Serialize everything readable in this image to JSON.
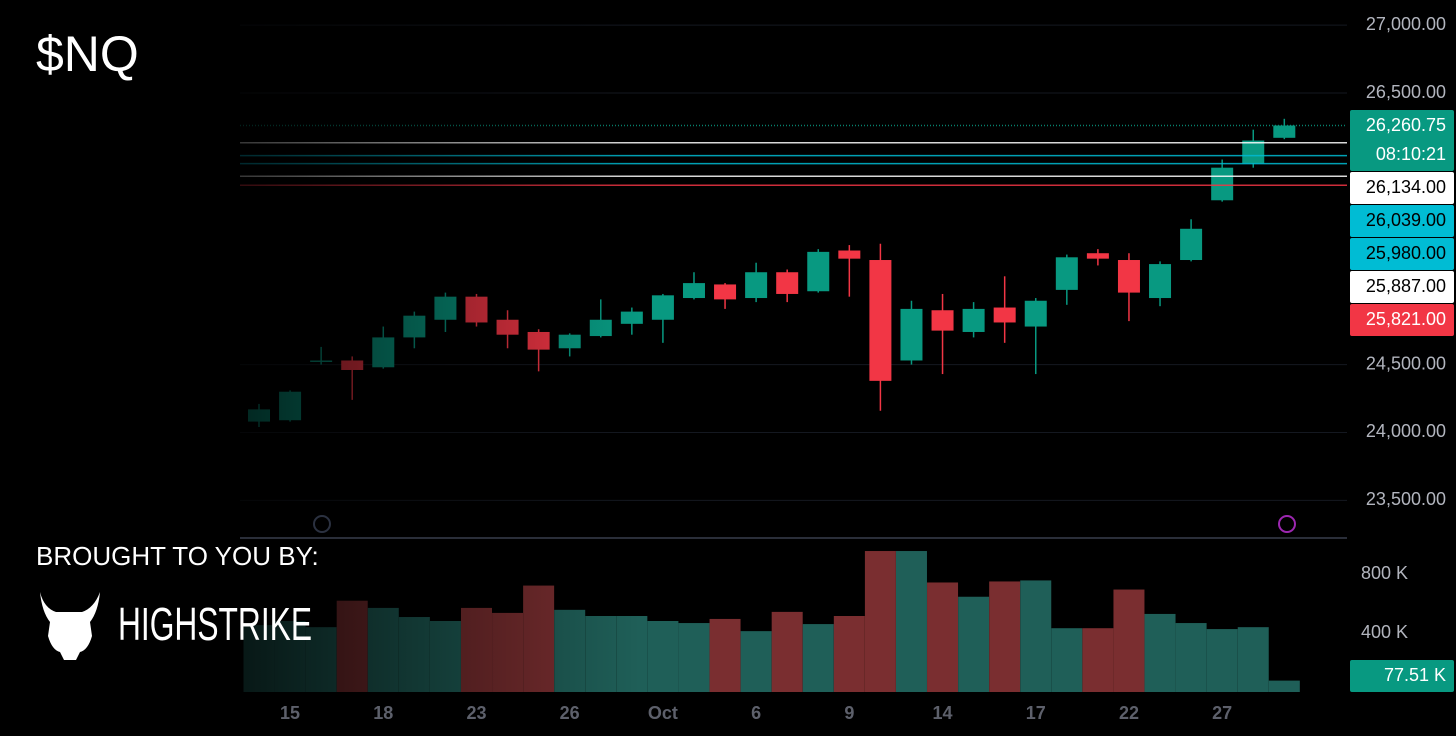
{
  "chart_data": {
    "type": "candlestick",
    "title": "$NQ",
    "categories": [
      null,
      "15",
      null,
      null,
      "18",
      null,
      null,
      "23",
      null,
      null,
      "26",
      null,
      null,
      "Oct",
      null,
      null,
      "6",
      null,
      null,
      "9",
      null,
      null,
      "14",
      null,
      null,
      "17",
      null,
      null,
      "22",
      null,
      null,
      "27",
      null,
      null
    ],
    "open": [
      24080,
      24090,
      24520,
      24530,
      24480,
      24700,
      24830,
      25000,
      24830,
      24740,
      24620,
      24710,
      24800,
      24830,
      24990,
      25090,
      24990,
      25180,
      25040,
      25340,
      25270,
      24530,
      24900,
      24740,
      24920,
      24780,
      25050,
      25320,
      25270,
      24990,
      25270,
      25710,
      25980,
      26170
    ],
    "high": [
      24210,
      24310,
      24630,
      24560,
      24780,
      24890,
      25030,
      25020,
      24900,
      24760,
      24730,
      24980,
      24920,
      25020,
      25180,
      25100,
      25250,
      25200,
      25350,
      25380,
      25390,
      24970,
      25020,
      24960,
      25150,
      24990,
      25310,
      25350,
      25320,
      25260,
      25570,
      26010,
      26230,
      26310
    ],
    "low": [
      24040,
      24080,
      24500,
      24240,
      24470,
      24620,
      24740,
      24780,
      24620,
      24450,
      24560,
      24700,
      24720,
      24660,
      24980,
      24910,
      24960,
      24960,
      25030,
      25000,
      24160,
      24500,
      24430,
      24700,
      24660,
      24430,
      24940,
      25230,
      24820,
      24930,
      25260,
      25700,
      25950,
      26160
    ],
    "close": [
      24170,
      24300,
      24530,
      24460,
      24700,
      24860,
      25000,
      24810,
      24720,
      24610,
      24720,
      24830,
      24890,
      25010,
      25100,
      24980,
      25180,
      25020,
      25330,
      25280,
      24380,
      24910,
      24750,
      24910,
      24810,
      24970,
      25290,
      25280,
      25030,
      25240,
      25500,
      25950,
      26150,
      26260.75
    ],
    "up_color": "#089981",
    "down_color": "#f23645",
    "ylim": [
      23230,
      27185
    ],
    "yticks": [
      {
        "value": 23500,
        "label": "23,500.00"
      },
      {
        "value": 24000,
        "label": "24,000.00"
      },
      {
        "value": 24500,
        "label": "24,500.00"
      },
      {
        "value": 26500,
        "label": "26,500.00"
      },
      {
        "value": 27000,
        "label": "27,000.00"
      }
    ],
    "grid": true,
    "price_lines": [
      {
        "value": 26260.75,
        "label": "26,260.75",
        "color": "#089981",
        "text_color": "#ffffff",
        "style": "dotted"
      },
      {
        "value": 26134,
        "label": "26,134.00",
        "color": "#ffffff",
        "text_color": "#000000",
        "style": "solid"
      },
      {
        "value": 26039,
        "label": "26,039.00",
        "color": "#00bcd4",
        "text_color": "#000000",
        "style": "solid"
      },
      {
        "value": 25980,
        "label": "25,980.00",
        "color": "#00bcd4",
        "text_color": "#000000",
        "style": "solid"
      },
      {
        "value": 25887,
        "label": "25,887.00",
        "color": "#ffffff",
        "text_color": "#000000",
        "style": "solid"
      },
      {
        "value": 25821,
        "label": "25,821.00",
        "color": "#f23645",
        "text_color": "#ffffff",
        "style": "solid"
      }
    ],
    "countdown": "08:10:21",
    "volume": {
      "values": [
        455000,
        483000,
        441000,
        621000,
        572000,
        510000,
        483000,
        572000,
        538000,
        724000,
        559000,
        517000,
        517000,
        483000,
        469000,
        497000,
        414000,
        545000,
        462000,
        517000,
        959000,
        959000,
        745000,
        648000,
        752000,
        759000,
        434000,
        434000,
        697000,
        531000,
        469000,
        428000,
        441000,
        77510
      ],
      "value_labels": [
        null,
        null,
        null,
        null,
        null,
        null,
        null,
        null,
        null,
        null,
        null,
        null,
        null,
        null,
        null,
        null,
        null,
        null,
        null,
        null,
        null,
        null,
        null,
        null,
        null,
        null,
        null,
        null,
        null,
        null,
        null,
        null,
        null,
        "77.51 K"
      ],
      "ylim": [
        0,
        1034000
      ],
      "yticks": [
        {
          "value": 400000,
          "label": "400 K"
        },
        {
          "value": 800000,
          "label": "800 K"
        }
      ],
      "up_color": "#1f5f58",
      "down_color": "#7a2e30"
    }
  },
  "sponsor": {
    "caption": "BROUGHT TO YOU BY:",
    "brand": "HIGHSTRIKE"
  }
}
